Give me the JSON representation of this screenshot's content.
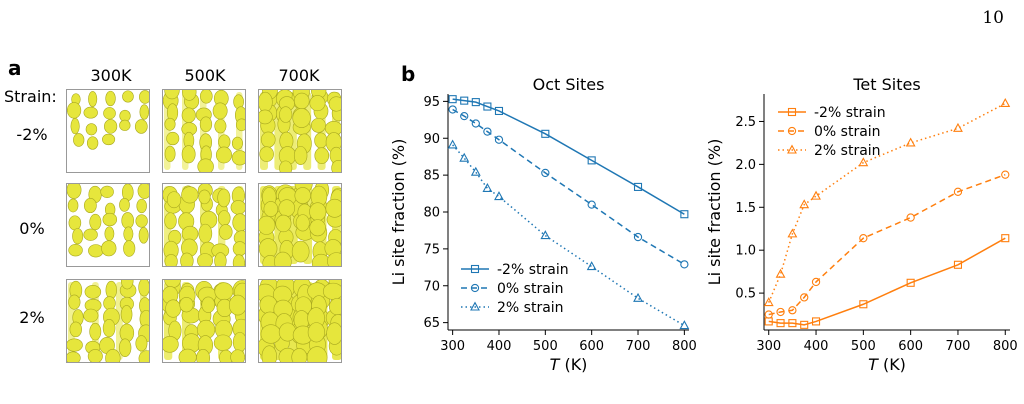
{
  "page_number": "10",
  "panel_a": {
    "label": "a",
    "strain_header": "Strain:",
    "temperatures": [
      "300K",
      "500K",
      "700K"
    ],
    "strains": [
      "-2%",
      "0%",
      "2%"
    ]
  },
  "panel_b": {
    "label": "b"
  },
  "colors": {
    "oct": "#1f77b4",
    "tet": "#ff7f0e",
    "isosurface": "#e6e63c"
  },
  "chart_data": [
    {
      "type": "line",
      "title": "Oct Sites",
      "xlabel": "T (K)",
      "ylabel": "Li site fraction (%)",
      "xlim": [
        290,
        810
      ],
      "ylim": [
        64,
        96
      ],
      "xticks": [
        300,
        400,
        500,
        600,
        700,
        800
      ],
      "yticks": [
        65,
        70,
        75,
        80,
        85,
        90,
        95
      ],
      "legend_position": "lower-left",
      "series": [
        {
          "name": "-2% strain",
          "style": "solid",
          "marker": "square",
          "x": [
            300,
            325,
            350,
            375,
            400,
            500,
            600,
            700,
            800
          ],
          "y": [
            95.3,
            95.1,
            94.9,
            94.3,
            93.7,
            90.6,
            87.0,
            83.4,
            79.7
          ]
        },
        {
          "name": "0% strain",
          "style": "dashed",
          "marker": "circle",
          "x": [
            300,
            325,
            350,
            375,
            400,
            500,
            600,
            700,
            800
          ],
          "y": [
            93.9,
            93.0,
            92.0,
            90.9,
            89.8,
            85.3,
            81.0,
            76.6,
            72.9
          ]
        },
        {
          "name": "2% strain",
          "style": "dotted",
          "marker": "triangle",
          "x": [
            300,
            325,
            350,
            375,
            400,
            500,
            600,
            700,
            800
          ],
          "y": [
            89.1,
            87.3,
            85.4,
            83.2,
            82.1,
            76.8,
            72.6,
            68.3,
            64.6
          ]
        }
      ]
    },
    {
      "type": "line",
      "title": "Tet Sites",
      "xlabel": "T (K)",
      "ylabel": "Li site fraction (%)",
      "xlim": [
        290,
        810
      ],
      "ylim": [
        0.07,
        2.82
      ],
      "xticks": [
        300,
        400,
        500,
        600,
        700,
        800
      ],
      "yticks": [
        0.5,
        1.0,
        1.5,
        2.0,
        2.5
      ],
      "legend_position": "upper-left",
      "series": [
        {
          "name": "-2% strain",
          "style": "solid",
          "marker": "square",
          "x": [
            300,
            325,
            350,
            375,
            400,
            500,
            600,
            700,
            800
          ],
          "y": [
            0.17,
            0.15,
            0.15,
            0.13,
            0.17,
            0.37,
            0.62,
            0.83,
            1.14
          ]
        },
        {
          "name": "0% strain",
          "style": "dashed",
          "marker": "circle",
          "x": [
            300,
            325,
            350,
            375,
            400,
            500,
            600,
            700,
            800
          ],
          "y": [
            0.25,
            0.28,
            0.3,
            0.45,
            0.63,
            1.14,
            1.38,
            1.68,
            1.88
          ]
        },
        {
          "name": "2% strain",
          "style": "dotted",
          "marker": "triangle",
          "x": [
            300,
            325,
            350,
            375,
            400,
            500,
            600,
            700,
            800
          ],
          "y": [
            0.39,
            0.72,
            1.19,
            1.53,
            1.63,
            2.02,
            2.25,
            2.42,
            2.71
          ]
        }
      ]
    }
  ]
}
